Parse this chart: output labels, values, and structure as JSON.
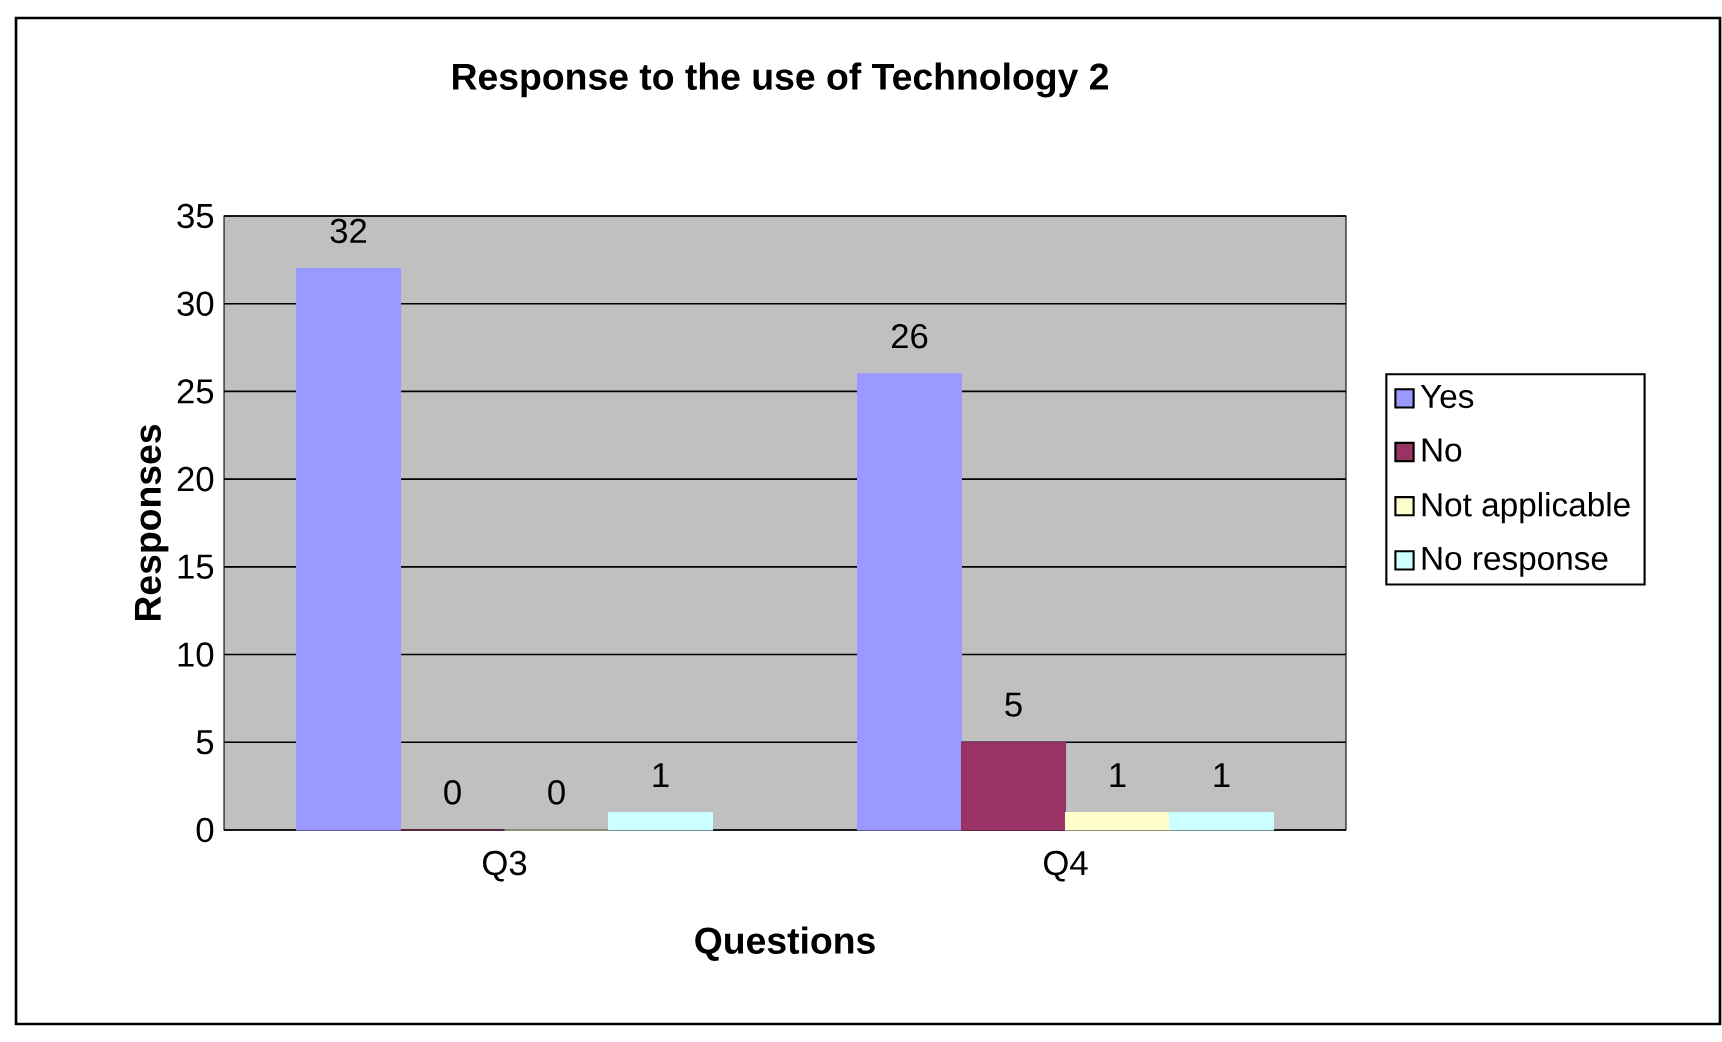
{
  "chart_data": {
    "type": "bar",
    "title": "Response to the use of Technology 2",
    "xlabel": "Questions",
    "ylabel": "Responses",
    "categories": [
      "Q3",
      "Q4"
    ],
    "series": [
      {
        "name": "Yes",
        "color": "#9999ff",
        "values": [
          32,
          26
        ]
      },
      {
        "name": "No",
        "color": "#993366",
        "values": [
          0,
          5
        ]
      },
      {
        "name": "Not applicable",
        "color": "#ffffcc",
        "values": [
          0,
          1
        ]
      },
      {
        "name": "No response",
        "color": "#ccffff",
        "values": [
          1,
          1
        ]
      }
    ],
    "ylim": [
      0,
      35
    ],
    "yticks": [
      0,
      5,
      10,
      15,
      20,
      25,
      30,
      35
    ],
    "grid": "y",
    "legend": "right",
    "data_labels": true
  }
}
